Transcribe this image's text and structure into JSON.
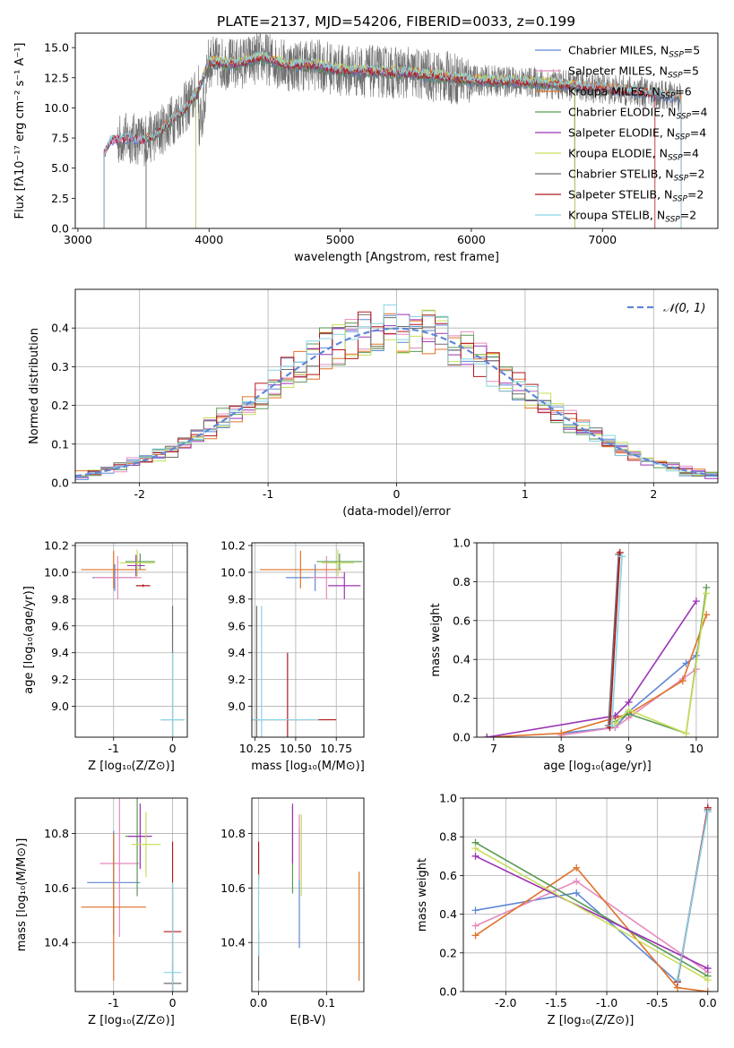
{
  "figure_title": "PLATE=2137, MJD=54206, FIBERID=0033, z=0.199",
  "colors": {
    "Chabrier MILES": "#5f87d6",
    "Salpeter MILES": "#e58bbd",
    "Kroupa MILES": "#e0732a",
    "Chabrier ELODIE": "#5a9a55",
    "Salpeter ELODIE": "#9b34b5",
    "Kroupa ELODIE": "#c8de5a",
    "Chabrier STELIB": "#6e6e6e",
    "Salpeter STELIB": "#b2181b",
    "Kroupa STELIB": "#87d3e3"
  },
  "chart_data": [
    {
      "id": "spectrum",
      "type": "line",
      "title": "PLATE=2137, MJD=54206, FIBERID=0033, z=0.199",
      "xlabel": "wavelength [Angstrom, rest frame]",
      "ylabel": "Flux [fλ10⁻¹⁷ erg cm⁻² s⁻¹ A⁻¹]",
      "xlim": [
        2980,
        7880
      ],
      "ylim": [
        0,
        16.2
      ],
      "xticks": [
        3000,
        4000,
        5000,
        6000,
        7000
      ],
      "yticks": [
        0.0,
        2.5,
        5.0,
        7.5,
        10.0,
        12.5,
        15.0
      ],
      "continuum": [
        [
          3200,
          6.2
        ],
        [
          3250,
          7.3
        ],
        [
          3300,
          7.4
        ],
        [
          3400,
          7.5
        ],
        [
          3500,
          7.3
        ],
        [
          3600,
          7.8
        ],
        [
          3700,
          8.8
        ],
        [
          3800,
          9.8
        ],
        [
          3900,
          11.0
        ],
        [
          4000,
          13.8
        ],
        [
          4200,
          13.6
        ],
        [
          4400,
          14.2
        ],
        [
          4600,
          13.5
        ],
        [
          4800,
          13.6
        ],
        [
          5000,
          13.1
        ],
        [
          5500,
          12.9
        ],
        [
          6000,
          12.3
        ],
        [
          6500,
          12.1
        ],
        [
          6800,
          11.8
        ],
        [
          7000,
          11.6
        ],
        [
          7300,
          11.3
        ],
        [
          7500,
          11.0
        ],
        [
          7600,
          10.8
        ]
      ],
      "legend": [
        {
          "name": "Chabrier MILES",
          "nssp": "5"
        },
        {
          "name": "Salpeter MILES",
          "nssp": "5"
        },
        {
          "name": "Kroupa MILES",
          "nssp": "6"
        },
        {
          "name": "Chabrier ELODIE",
          "nssp": "4"
        },
        {
          "name": "Salpeter ELODIE",
          "nssp": "4"
        },
        {
          "name": "Kroupa ELODIE",
          "nssp": "4"
        },
        {
          "name": "Chabrier STELIB",
          "nssp": "2"
        },
        {
          "name": "Salpeter STELIB",
          "nssp": "2"
        },
        {
          "name": "Kroupa STELIB",
          "nssp": "2"
        }
      ]
    },
    {
      "id": "residuals",
      "type": "area",
      "xlabel": "(data-model)/error",
      "ylabel": "Normed distribution",
      "xlim": [
        -2.5,
        2.5
      ],
      "ylim": [
        0,
        0.5
      ],
      "xticks": [
        -2,
        -1,
        0,
        1,
        2
      ],
      "yticks": [
        0.0,
        0.1,
        0.2,
        0.3,
        0.4
      ],
      "legend": "𝒩(0, 1)"
    },
    {
      "id": "age_vs_Z",
      "type": "scatter",
      "xlabel": "Z [log₁₀(Z/Z⊙)]",
      "ylabel": "age  [log₁₀(age/yr)]",
      "xlim": [
        -1.65,
        0.25
      ],
      "ylim": [
        8.77,
        10.22
      ],
      "xticks": [
        -1,
        0
      ],
      "yticks": [
        9.0,
        9.2,
        9.4,
        9.6,
        9.8,
        10.0,
        10.2
      ],
      "points": [
        {
          "model": "Chabrier MILES",
          "x": -0.98,
          "xerr": 0.38,
          "y": 9.96,
          "yerr": 0.1
        },
        {
          "model": "Salpeter MILES",
          "x": -0.93,
          "xerr": 0.4,
          "y": 9.96,
          "yerr": 0.16
        },
        {
          "model": "Kroupa MILES",
          "x": -1.0,
          "xerr": 0.55,
          "y": 10.02,
          "yerr": 0.14
        },
        {
          "model": "Chabrier ELODIE",
          "x": -0.55,
          "xerr": 0.25,
          "y": 10.08,
          "yerr": 0.06
        },
        {
          "model": "Salpeter ELODIE",
          "x": -0.62,
          "xerr": 0.15,
          "y": 10.05,
          "yerr": 0.08
        },
        {
          "model": "Kroupa ELODIE",
          "x": -0.6,
          "xerr": 0.3,
          "y": 10.07,
          "yerr": 0.1
        },
        {
          "model": "Salpeter STELIB",
          "x": -0.5,
          "xerr": 0.12,
          "y": 9.9,
          "yerr": 0.01
        },
        {
          "model": "Chabrier STELIB",
          "x": 0.0,
          "xerr": 0.2,
          "y": 8.9,
          "yerr": 0.85
        },
        {
          "model": "Kroupa STELIB",
          "x": 0.0,
          "xerr": 0.2,
          "y": 8.9,
          "yerr": 0.5
        }
      ]
    },
    {
      "id": "age_vs_mass",
      "type": "scatter",
      "xlabel": "mass [log₁₀(M/M⊙)]",
      "ylabel": "",
      "xlim": [
        10.23,
        10.92
      ],
      "ylim": [
        8.77,
        10.22
      ],
      "xticks": [
        10.25,
        10.5,
        10.75
      ],
      "yticks": [
        9.0,
        9.2,
        9.4,
        9.6,
        9.8,
        10.0,
        10.2
      ],
      "points": [
        {
          "model": "Chabrier MILES",
          "x": 10.62,
          "xerr": 0.18,
          "y": 9.96,
          "yerr": 0.1
        },
        {
          "model": "Salpeter MILES",
          "x": 10.69,
          "xerr": 0.1,
          "y": 9.96,
          "yerr": 0.16
        },
        {
          "model": "Kroupa MILES",
          "x": 10.53,
          "xerr": 0.25,
          "y": 10.02,
          "yerr": 0.14
        },
        {
          "model": "Chabrier ELODIE",
          "x": 10.77,
          "xerr": 0.14,
          "y": 10.08,
          "yerr": 0.06
        },
        {
          "model": "Salpeter ELODIE",
          "x": 10.8,
          "xerr": 0.1,
          "y": 9.9,
          "yerr": 0.1
        },
        {
          "model": "Kroupa ELODIE",
          "x": 10.76,
          "xerr": 0.1,
          "y": 10.07,
          "yerr": 0.1
        },
        {
          "model": "Chabrier STELIB",
          "x": 10.26,
          "xerr": 0.01,
          "y": 8.9,
          "yerr": 0.85
        },
        {
          "model": "Salpeter STELIB",
          "x": 10.45,
          "xerr": 0.3,
          "y": 8.9,
          "yerr": 0.5
        },
        {
          "model": "Kroupa STELIB",
          "x": 10.29,
          "xerr": 0.35,
          "y": 8.9,
          "yerr": 0.85
        }
      ]
    },
    {
      "id": "weight_vs_age",
      "type": "line",
      "xlabel": "age  [log₁₀(age/yr)]",
      "ylabel": "mass weight",
      "xlim": [
        6.75,
        10.32
      ],
      "ylim": [
        0,
        1.0
      ],
      "xticks": [
        7,
        8,
        9,
        10
      ],
      "yticks": [
        0.0,
        0.2,
        0.4,
        0.6,
        0.8,
        1.0
      ],
      "series": [
        {
          "model": "Chabrier MILES",
          "x": [
            8.0,
            8.8,
            9.0,
            9.85,
            10.0
          ],
          "y": [
            0.02,
            0.05,
            0.13,
            0.38,
            0.42
          ]
        },
        {
          "model": "Salpeter MILES",
          "x": [
            8.0,
            8.8,
            9.0,
            9.8,
            10.0
          ],
          "y": [
            0.01,
            0.05,
            0.1,
            0.3,
            0.35
          ]
        },
        {
          "model": "Kroupa MILES",
          "x": [
            6.9,
            8.0,
            8.8,
            9.0,
            9.8,
            10.15
          ],
          "y": [
            0.0,
            0.02,
            0.1,
            0.12,
            0.29,
            0.63
          ]
        },
        {
          "model": "Chabrier ELODIE",
          "x": [
            8.8,
            9.0,
            9.85,
            10.15
          ],
          "y": [
            0.08,
            0.12,
            0.02,
            0.77
          ]
        },
        {
          "model": "Salpeter ELODIE",
          "x": [
            6.9,
            8.8,
            9.0,
            10.0
          ],
          "y": [
            0.0,
            0.11,
            0.18,
            0.7
          ]
        },
        {
          "model": "Kroupa ELODIE",
          "x": [
            8.8,
            9.0,
            9.85,
            10.15
          ],
          "y": [
            0.07,
            0.14,
            0.02,
            0.74
          ]
        },
        {
          "model": "Chabrier STELIB",
          "x": [
            8.7,
            8.85
          ],
          "y": [
            0.06,
            0.94
          ]
        },
        {
          "model": "Salpeter STELIB",
          "x": [
            8.72,
            8.87
          ],
          "y": [
            0.05,
            0.95
          ]
        },
        {
          "model": "Kroupa STELIB",
          "x": [
            8.75,
            8.9
          ],
          "y": [
            0.06,
            0.93
          ]
        }
      ]
    },
    {
      "id": "mass_vs_Z",
      "type": "scatter",
      "xlabel": "Z [log₁₀(Z/Z⊙)]",
      "ylabel": "mass [log₁₀(M/M⊙)]",
      "xlim": [
        -1.65,
        0.25
      ],
      "ylim": [
        10.22,
        10.93
      ],
      "xticks": [
        -1,
        0
      ],
      "yticks": [
        10.4,
        10.6,
        10.8
      ],
      "points": [
        {
          "model": "Chabrier MILES",
          "x": -1.0,
          "xerr": 0.45,
          "y": 10.62,
          "yerr": 0.19
        },
        {
          "model": "Salpeter MILES",
          "x": -0.9,
          "xerr": 0.33,
          "y": 10.69,
          "yerr": 0.27
        },
        {
          "model": "Kroupa MILES",
          "x": -1.0,
          "xerr": 0.55,
          "y": 10.53,
          "yerr": 0.27
        },
        {
          "model": "Chabrier ELODIE",
          "x": -0.6,
          "xerr": 0.2,
          "y": 10.79,
          "yerr": 0.22
        },
        {
          "model": "Salpeter ELODIE",
          "x": -0.55,
          "xerr": 0.2,
          "y": 10.79,
          "yerr": 0.12
        },
        {
          "model": "Kroupa ELODIE",
          "x": -0.45,
          "xerr": 0.25,
          "y": 10.76,
          "yerr": 0.12
        },
        {
          "model": "Chabrier STELIB",
          "x": 0.0,
          "xerr": 0.15,
          "y": 10.25,
          "yerr": 0.08
        },
        {
          "model": "Salpeter STELIB",
          "x": 0.0,
          "xerr": 0.15,
          "y": 10.44,
          "yerr": 0.33
        },
        {
          "model": "Kroupa STELIB",
          "x": 0.0,
          "xerr": 0.15,
          "y": 10.29,
          "yerr": 0.33
        }
      ]
    },
    {
      "id": "mass_vs_ebv",
      "type": "scatter",
      "xlabel": "E(B-V)",
      "ylabel": "",
      "xlim": [
        -0.01,
        0.155
      ],
      "ylim": [
        10.22,
        10.93
      ],
      "xticks": [
        0.0,
        0.1
      ],
      "yticks": [
        10.4,
        10.6,
        10.8
      ],
      "points": [
        {
          "model": "Chabrier MILES",
          "x": 0.06,
          "y": 10.6,
          "yerr": 0.22
        },
        {
          "model": "Salpeter MILES",
          "x": 0.06,
          "y": 10.75,
          "yerr": 0.12
        },
        {
          "model": "Kroupa MILES",
          "x": 0.148,
          "y": 10.46,
          "yerr": 0.2
        },
        {
          "model": "Chabrier ELODIE",
          "x": 0.05,
          "y": 10.74,
          "yerr": 0.16
        },
        {
          "model": "Salpeter ELODIE",
          "x": 0.05,
          "y": 10.8,
          "yerr": 0.11
        },
        {
          "model": "Kroupa ELODIE",
          "x": 0.063,
          "y": 10.72,
          "yerr": 0.15
        },
        {
          "model": "Chabrier STELIB",
          "x": 0.0,
          "y": 10.35,
          "yerr": 0.09
        },
        {
          "model": "Salpeter STELIB",
          "x": 0.0,
          "y": 10.7,
          "yerr": 0.07
        },
        {
          "model": "Kroupa STELIB",
          "x": 0.0,
          "y": 10.5,
          "yerr": 0.15
        }
      ]
    },
    {
      "id": "weight_vs_Z",
      "type": "line",
      "xlabel": "Z [log₁₀(Z/Z⊙)]",
      "ylabel": "mass weight",
      "xlim": [
        -2.42,
        0.1
      ],
      "ylim": [
        0,
        1.0
      ],
      "xticks": [
        -2.0,
        -1.5,
        -1.0,
        -0.5,
        0.0
      ],
      "yticks": [
        0.0,
        0.2,
        0.4,
        0.6,
        0.8,
        1.0
      ],
      "series": [
        {
          "model": "Chabrier MILES",
          "x": [
            -2.3,
            -1.3,
            -0.3,
            0.0
          ],
          "y": [
            0.42,
            0.51,
            0.05,
            0.93
          ]
        },
        {
          "model": "Salpeter MILES",
          "x": [
            -2.3,
            -1.3,
            0.0
          ],
          "y": [
            0.34,
            0.57,
            0.1
          ]
        },
        {
          "model": "Kroupa MILES",
          "x": [
            -2.3,
            -1.3,
            -0.3,
            0.0
          ],
          "y": [
            0.29,
            0.64,
            0.02,
            0.0
          ]
        },
        {
          "model": "Chabrier ELODIE",
          "x": [
            -2.3,
            0.0
          ],
          "y": [
            0.77,
            0.08
          ]
        },
        {
          "model": "Salpeter ELODIE",
          "x": [
            -2.3,
            0.0
          ],
          "y": [
            0.7,
            0.12
          ]
        },
        {
          "model": "Kroupa ELODIE",
          "x": [
            -2.3,
            0.0
          ],
          "y": [
            0.74,
            0.06
          ]
        },
        {
          "model": "Chabrier STELIB",
          "x": [
            -0.3,
            0.0
          ],
          "y": [
            0.06,
            0.94
          ]
        },
        {
          "model": "Salpeter STELIB",
          "x": [
            -0.3,
            0.0
          ],
          "y": [
            0.05,
            0.95
          ]
        },
        {
          "model": "Kroupa STELIB",
          "x": [
            -0.3,
            0.0
          ],
          "y": [
            0.06,
            0.93
          ]
        }
      ]
    }
  ]
}
